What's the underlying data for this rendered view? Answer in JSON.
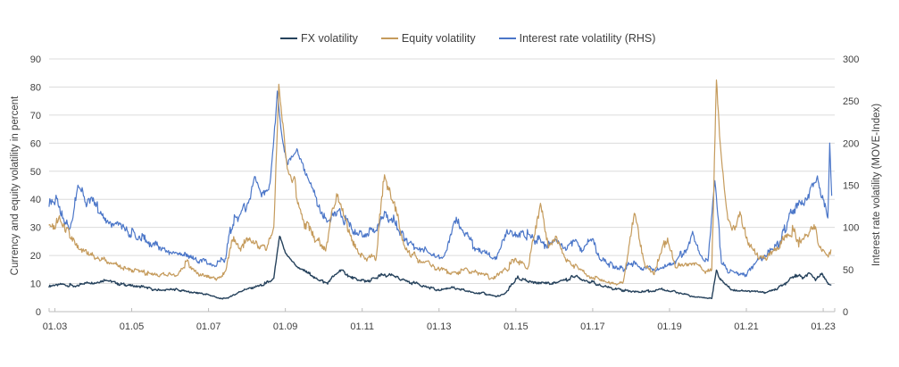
{
  "chart_data": {
    "type": "line",
    "title": "",
    "legend_position": "top",
    "grid": "horizontal",
    "background": "#ffffff",
    "x_axis": {
      "tick_labels": [
        "01.03",
        "01.05",
        "01.07",
        "01.09",
        "01.11",
        "01.13",
        "01.15",
        "01.17",
        "01.19",
        "01.21",
        "01.23"
      ],
      "tick_years": [
        2003,
        2005,
        2007,
        2009,
        2011,
        2013,
        2015,
        2017,
        2019,
        2021,
        2023
      ],
      "range": [
        2002.85,
        2023.3
      ]
    },
    "left_axis": {
      "title": "Currency and equity volatility in percent",
      "ticks": [
        0,
        10,
        20,
        30,
        40,
        50,
        60,
        70,
        80,
        90
      ],
      "range": [
        0,
        90
      ]
    },
    "right_axis": {
      "title": "Interest rate volatility (MOVE-Index)",
      "ticks": [
        0,
        50,
        100,
        150,
        200,
        250,
        300
      ],
      "range": [
        0,
        300
      ]
    },
    "series": [
      {
        "name": "FX volatility",
        "axis": "left",
        "color": "#26425c",
        "points": [
          [
            2002.85,
            9.5
          ],
          [
            2003.2,
            10
          ],
          [
            2003.5,
            9
          ],
          [
            2003.8,
            10
          ],
          [
            2004.1,
            10.5
          ],
          [
            2004.35,
            11
          ],
          [
            2004.6,
            10
          ],
          [
            2004.9,
            9.5
          ],
          [
            2005.2,
            9
          ],
          [
            2005.5,
            8
          ],
          [
            2005.8,
            7.5
          ],
          [
            2006.1,
            8
          ],
          [
            2006.5,
            7
          ],
          [
            2006.8,
            6.5
          ],
          [
            2007.0,
            6
          ],
          [
            2007.35,
            4.5
          ],
          [
            2007.6,
            5.5
          ],
          [
            2007.9,
            7.5
          ],
          [
            2008.2,
            9
          ],
          [
            2008.5,
            10
          ],
          [
            2008.7,
            12
          ],
          [
            2008.85,
            27
          ],
          [
            2009.0,
            21
          ],
          [
            2009.3,
            16
          ],
          [
            2009.6,
            14
          ],
          [
            2009.9,
            11
          ],
          [
            2010.1,
            10.5
          ],
          [
            2010.45,
            15
          ],
          [
            2010.7,
            12.5
          ],
          [
            2011.0,
            11
          ],
          [
            2011.3,
            11.5
          ],
          [
            2011.55,
            13
          ],
          [
            2011.8,
            12.5
          ],
          [
            2012.0,
            11.5
          ],
          [
            2012.4,
            10
          ],
          [
            2012.8,
            8.5
          ],
          [
            2013.0,
            7.5
          ],
          [
            2013.3,
            8.5
          ],
          [
            2013.6,
            8
          ],
          [
            2013.9,
            7
          ],
          [
            2014.2,
            6.5
          ],
          [
            2014.5,
            5.2
          ],
          [
            2014.75,
            7
          ],
          [
            2015.05,
            12
          ],
          [
            2015.3,
            11
          ],
          [
            2015.6,
            10.5
          ],
          [
            2015.9,
            10
          ],
          [
            2016.2,
            11
          ],
          [
            2016.55,
            12.5
          ],
          [
            2016.75,
            11.5
          ],
          [
            2017.0,
            10.5
          ],
          [
            2017.3,
            9
          ],
          [
            2017.6,
            8
          ],
          [
            2017.9,
            7.5
          ],
          [
            2018.2,
            7
          ],
          [
            2018.5,
            7.5
          ],
          [
            2018.8,
            8
          ],
          [
            2019.0,
            7.5
          ],
          [
            2019.3,
            6.5
          ],
          [
            2019.6,
            5.5
          ],
          [
            2019.9,
            4.8
          ],
          [
            2020.1,
            5
          ],
          [
            2020.22,
            14.5
          ],
          [
            2020.35,
            11
          ],
          [
            2020.6,
            8
          ],
          [
            2020.9,
            7.5
          ],
          [
            2021.2,
            7
          ],
          [
            2021.5,
            7
          ],
          [
            2021.8,
            8
          ],
          [
            2022.0,
            10
          ],
          [
            2022.2,
            12
          ],
          [
            2022.35,
            13.5
          ],
          [
            2022.5,
            11.5
          ],
          [
            2022.65,
            13.8
          ],
          [
            2022.8,
            11
          ],
          [
            2022.95,
            13.5
          ],
          [
            2023.1,
            10.5
          ],
          [
            2023.2,
            9.5
          ]
        ]
      },
      {
        "name": "Equity volatility",
        "axis": "left",
        "color": "#c59b5c",
        "points": [
          [
            2002.85,
            30
          ],
          [
            2003.1,
            33
          ],
          [
            2003.3,
            29
          ],
          [
            2003.6,
            23
          ],
          [
            2003.9,
            21
          ],
          [
            2004.1,
            19
          ],
          [
            2004.4,
            17.5
          ],
          [
            2004.7,
            16
          ],
          [
            2005.0,
            15
          ],
          [
            2005.3,
            14
          ],
          [
            2005.6,
            13.5
          ],
          [
            2005.9,
            13
          ],
          [
            2006.2,
            13.5
          ],
          [
            2006.45,
            18
          ],
          [
            2006.7,
            14
          ],
          [
            2006.95,
            12
          ],
          [
            2007.2,
            11.5
          ],
          [
            2007.45,
            14
          ],
          [
            2007.62,
            26
          ],
          [
            2007.8,
            22
          ],
          [
            2008.0,
            25
          ],
          [
            2008.25,
            24
          ],
          [
            2008.5,
            22
          ],
          [
            2008.7,
            30
          ],
          [
            2008.83,
            80
          ],
          [
            2008.92,
            68
          ],
          [
            2009.05,
            50
          ],
          [
            2009.25,
            44
          ],
          [
            2009.5,
            32
          ],
          [
            2009.8,
            26
          ],
          [
            2010.05,
            23
          ],
          [
            2010.35,
            44
          ],
          [
            2010.55,
            32
          ],
          [
            2010.8,
            24
          ],
          [
            2011.05,
            19
          ],
          [
            2011.35,
            19
          ],
          [
            2011.58,
            48
          ],
          [
            2011.75,
            41
          ],
          [
            2011.95,
            32
          ],
          [
            2012.1,
            24
          ],
          [
            2012.4,
            19
          ],
          [
            2012.7,
            17
          ],
          [
            2013.0,
            15
          ],
          [
            2013.3,
            14
          ],
          [
            2013.7,
            14.5
          ],
          [
            2014.0,
            14
          ],
          [
            2014.4,
            12
          ],
          [
            2014.75,
            15
          ],
          [
            2015.0,
            19
          ],
          [
            2015.3,
            15
          ],
          [
            2015.64,
            39
          ],
          [
            2015.85,
            23
          ],
          [
            2016.05,
            25
          ],
          [
            2016.3,
            18
          ],
          [
            2016.55,
            16
          ],
          [
            2016.8,
            14
          ],
          [
            2017.05,
            12
          ],
          [
            2017.4,
            10.5
          ],
          [
            2017.8,
            10
          ],
          [
            2018.1,
            36
          ],
          [
            2018.35,
            17
          ],
          [
            2018.6,
            14
          ],
          [
            2018.95,
            27
          ],
          [
            2019.15,
            17
          ],
          [
            2019.45,
            16
          ],
          [
            2019.7,
            17
          ],
          [
            2019.95,
            13.5
          ],
          [
            2020.1,
            15
          ],
          [
            2020.22,
            83
          ],
          [
            2020.32,
            60
          ],
          [
            2020.5,
            33
          ],
          [
            2020.7,
            29
          ],
          [
            2020.85,
            34
          ],
          [
            2021.05,
            24
          ],
          [
            2021.3,
            20
          ],
          [
            2021.55,
            19
          ],
          [
            2021.8,
            23
          ],
          [
            2022.0,
            26
          ],
          [
            2022.2,
            29
          ],
          [
            2022.4,
            24
          ],
          [
            2022.6,
            28
          ],
          [
            2022.8,
            29
          ],
          [
            2022.95,
            23
          ],
          [
            2023.1,
            20
          ],
          [
            2023.2,
            22
          ]
        ]
      },
      {
        "name": "Interest rate volatility (RHS)",
        "axis": "right",
        "color": "#4b76c8",
        "points": [
          [
            2002.85,
            125
          ],
          [
            2003.05,
            135
          ],
          [
            2003.2,
            115
          ],
          [
            2003.4,
            100
          ],
          [
            2003.6,
            150
          ],
          [
            2003.8,
            135
          ],
          [
            2004.0,
            128
          ],
          [
            2004.3,
            115
          ],
          [
            2004.6,
            102
          ],
          [
            2004.9,
            96
          ],
          [
            2005.2,
            90
          ],
          [
            2005.5,
            80
          ],
          [
            2005.8,
            75
          ],
          [
            2006.1,
            68
          ],
          [
            2006.4,
            70
          ],
          [
            2006.7,
            62
          ],
          [
            2007.0,
            58
          ],
          [
            2007.2,
            55
          ],
          [
            2007.45,
            65
          ],
          [
            2007.6,
            105
          ],
          [
            2007.8,
            112
          ],
          [
            2008.0,
            128
          ],
          [
            2008.2,
            158
          ],
          [
            2008.4,
            138
          ],
          [
            2008.6,
            150
          ],
          [
            2008.79,
            258
          ],
          [
            2008.9,
            210
          ],
          [
            2009.05,
            178
          ],
          [
            2009.3,
            192
          ],
          [
            2009.5,
            168
          ],
          [
            2009.7,
            148
          ],
          [
            2009.9,
            122
          ],
          [
            2010.1,
            106
          ],
          [
            2010.4,
            120
          ],
          [
            2010.6,
            104
          ],
          [
            2010.9,
            95
          ],
          [
            2011.1,
            94
          ],
          [
            2011.4,
            100
          ],
          [
            2011.6,
            116
          ],
          [
            2011.8,
            108
          ],
          [
            2012.0,
            90
          ],
          [
            2012.3,
            80
          ],
          [
            2012.6,
            74
          ],
          [
            2012.9,
            68
          ],
          [
            2013.1,
            62
          ],
          [
            2013.45,
            112
          ],
          [
            2013.65,
            95
          ],
          [
            2013.9,
            78
          ],
          [
            2014.2,
            68
          ],
          [
            2014.5,
            63
          ],
          [
            2014.77,
            97
          ],
          [
            2015.0,
            88
          ],
          [
            2015.3,
            92
          ],
          [
            2015.55,
            85
          ],
          [
            2015.8,
            80
          ],
          [
            2016.0,
            82
          ],
          [
            2016.3,
            74
          ],
          [
            2016.55,
            88
          ],
          [
            2016.75,
            72
          ],
          [
            2016.95,
            88
          ],
          [
            2017.2,
            62
          ],
          [
            2017.5,
            55
          ],
          [
            2017.8,
            50
          ],
          [
            2018.0,
            58
          ],
          [
            2018.3,
            53
          ],
          [
            2018.6,
            50
          ],
          [
            2018.9,
            54
          ],
          [
            2019.1,
            58
          ],
          [
            2019.35,
            70
          ],
          [
            2019.6,
            90
          ],
          [
            2019.8,
            68
          ],
          [
            2020.0,
            62
          ],
          [
            2020.18,
            157
          ],
          [
            2020.35,
            62
          ],
          [
            2020.55,
            48
          ],
          [
            2020.8,
            44
          ],
          [
            2021.0,
            45
          ],
          [
            2021.3,
            60
          ],
          [
            2021.6,
            70
          ],
          [
            2021.9,
            85
          ],
          [
            2022.1,
            110
          ],
          [
            2022.3,
            130
          ],
          [
            2022.5,
            124
          ],
          [
            2022.7,
            150
          ],
          [
            2022.85,
            160
          ],
          [
            2022.95,
            135
          ],
          [
            2023.05,
            120
          ],
          [
            2023.12,
            112
          ],
          [
            2023.17,
            198
          ],
          [
            2023.22,
            138
          ]
        ]
      }
    ]
  }
}
